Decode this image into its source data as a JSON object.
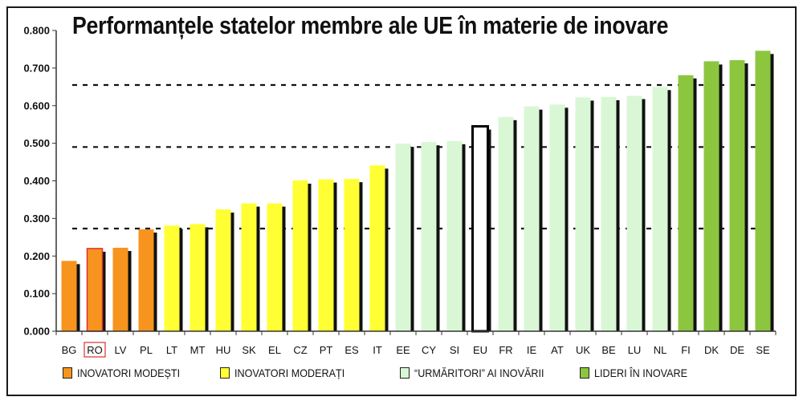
{
  "chart_data": {
    "type": "bar",
    "title": "Performanțele statelor membre ale UE în materie de inovare",
    "xlabel": "",
    "ylabel": "",
    "ylim": [
      0,
      0.8
    ],
    "yticks": [
      "0.000",
      "0.100",
      "0.200",
      "0.300",
      "0.400",
      "0.500",
      "0.600",
      "0.700",
      "0.800"
    ],
    "categories": [
      "BG",
      "RO",
      "LV",
      "PL",
      "LT",
      "MT",
      "HU",
      "SK",
      "EL",
      "CZ",
      "PT",
      "ES",
      "IT",
      "EE",
      "CY",
      "SI",
      "EU",
      "FR",
      "IE",
      "AT",
      "UK",
      "BE",
      "LU",
      "NL",
      "FI",
      "DK",
      "DE",
      "SE"
    ],
    "values": [
      0.187,
      0.22,
      0.222,
      0.271,
      0.281,
      0.285,
      0.324,
      0.34,
      0.34,
      0.401,
      0.404,
      0.405,
      0.441,
      0.499,
      0.503,
      0.506,
      0.545,
      0.57,
      0.598,
      0.603,
      0.622,
      0.623,
      0.626,
      0.65,
      0.681,
      0.718,
      0.721,
      0.746
    ],
    "groups": [
      "modest",
      "modest",
      "modest",
      "modest",
      "moderate",
      "moderate",
      "moderate",
      "moderate",
      "moderate",
      "moderate",
      "moderate",
      "moderate",
      "moderate",
      "follower",
      "follower",
      "follower",
      "eu",
      "follower",
      "follower",
      "follower",
      "follower",
      "follower",
      "follower",
      "follower",
      "leader",
      "leader",
      "leader",
      "leader"
    ],
    "highlighted": [
      "RO"
    ],
    "reference_lines": [
      0.273,
      0.49,
      0.655
    ],
    "grid": false,
    "legend_position": "bottom",
    "colors": {
      "modest": "#f7941d",
      "moderate": "#ffff33",
      "follower": "#d9f7d5",
      "eu": "#ffffff",
      "leader": "#8cc63f",
      "shadow": "#111111",
      "highlight_border": "#e03030",
      "eu_border": "#000000"
    },
    "legend": [
      {
        "label": "INOVATORI MODEȘTI",
        "color": "#f7941d"
      },
      {
        "label": "INOVATORI MODERAȚI",
        "color": "#ffff33"
      },
      {
        "label": "“URMĂRITORI” AI INOVĂRII",
        "color": "#d9f7d5"
      },
      {
        "label": "LIDERI ÎN INOVARE",
        "color": "#8cc63f"
      }
    ]
  }
}
